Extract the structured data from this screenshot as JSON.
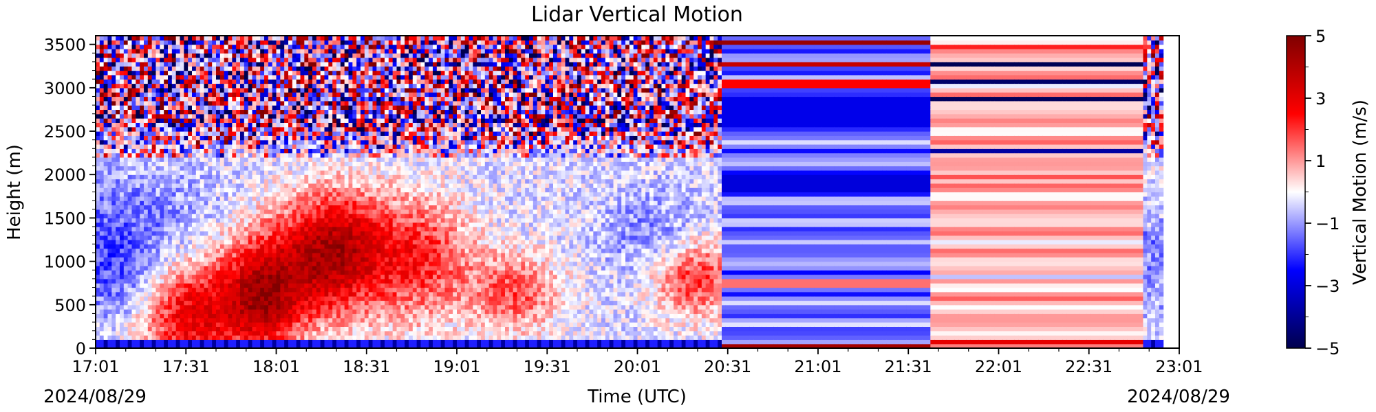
{
  "chart_data": {
    "type": "heatmap",
    "title": "Lidar Vertical Motion",
    "xlabel": "Time (UTC)",
    "ylabel": "Height (m)",
    "x_range": [
      "17:01",
      "23:01"
    ],
    "ylim": [
      0,
      3600
    ],
    "x_ticks": [
      "17:01",
      "17:31",
      "18:01",
      "18:31",
      "19:01",
      "19:31",
      "20:01",
      "20:31",
      "21:01",
      "21:31",
      "22:01",
      "22:31",
      "23:01"
    ],
    "y_ticks": [
      0,
      500,
      1000,
      1500,
      2000,
      2500,
      3000,
      3500
    ],
    "date_start": "2024/08/29",
    "date_end": "2024/08/29",
    "colorbar": {
      "label": "Vertical Motion (m/s)",
      "range": [
        -5,
        5
      ],
      "ticks": [
        5,
        3,
        1,
        -1,
        -3,
        -5
      ],
      "colormap": "seismic",
      "colors": [
        "#00004d",
        "#0000ff",
        "#ffffff",
        "#ff0000",
        "#800000"
      ]
    },
    "observations": [
      {
        "time": "17:01-20:28",
        "type": "lidar measured vertical velocity, convective updrafts and downdrafts below ~2200 m, noise above"
      },
      {
        "time": "20:28-21:38",
        "type": "time-constant column, strong negative values 2500-2900 m and 1800-2000 m"
      },
      {
        "time": "21:38-22:49",
        "type": "time-constant column, mostly positive values, negative band at ~2250 m"
      },
      {
        "time": "22:49-22:55",
        "type": "lidar measured vertical velocity"
      }
    ],
    "grid": false
  }
}
